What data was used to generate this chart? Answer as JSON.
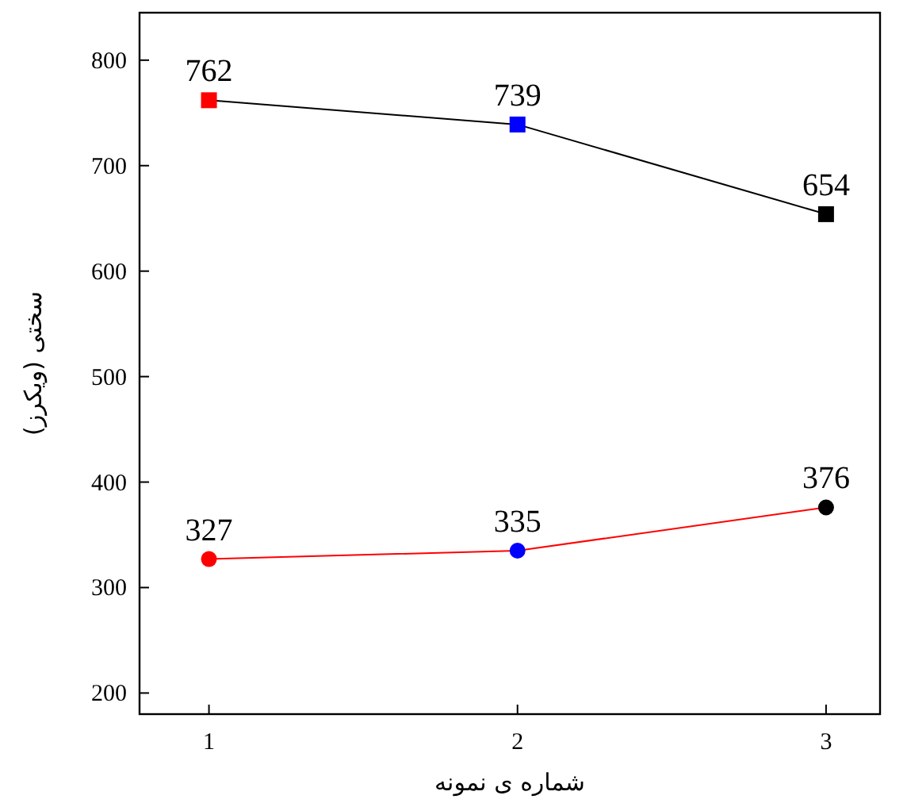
{
  "chart_data": {
    "type": "line",
    "xlabel": "شماره ی نمونه",
    "ylabel": "سختی (ویکرز)",
    "x": [
      1,
      2,
      3
    ],
    "xlim": [
      0.775,
      3.175
    ],
    "xticks": [
      1,
      2,
      3
    ],
    "ylim": [
      180,
      845
    ],
    "yticks": [
      200,
      300,
      400,
      500,
      600,
      700,
      800
    ],
    "data_labels": true,
    "line_style": "solid",
    "series": [
      {
        "color": "#000000",
        "colors": [
          "#ff0000",
          "#0000ff",
          "#000000"
        ],
        "marker": "square",
        "values": [
          762,
          739,
          654
        ]
      },
      {
        "color": "#ff0000",
        "colors": [
          "#ff0000",
          "#0000ff",
          "#000000"
        ],
        "marker": "circle",
        "values": [
          327,
          335,
          376
        ]
      }
    ]
  }
}
